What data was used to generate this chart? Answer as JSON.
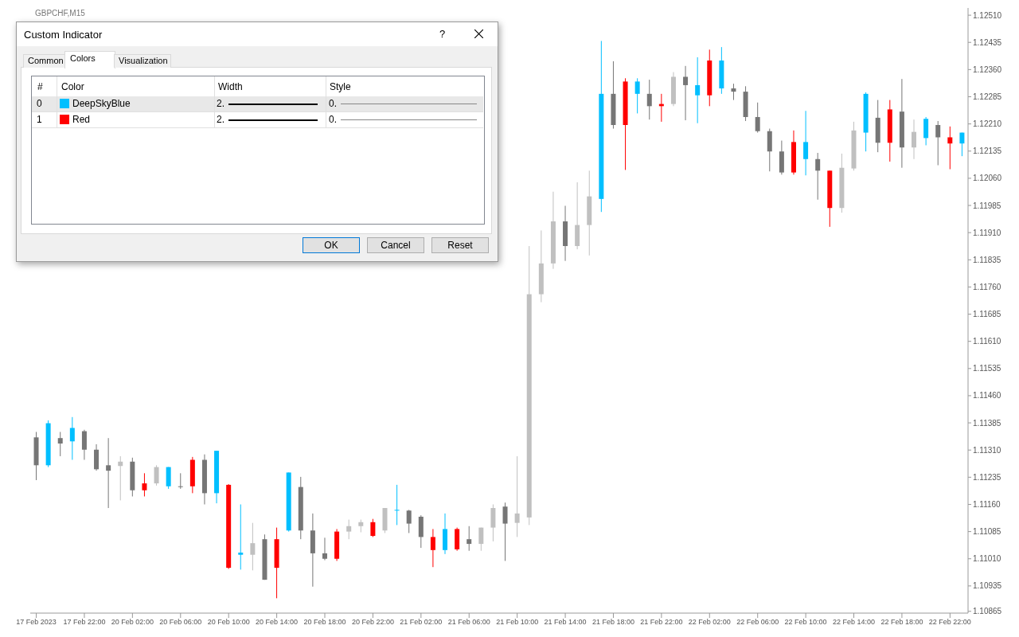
{
  "chart_data": {
    "type": "candlestick",
    "title": "GBPCHF,M15",
    "categories": [
      "17 Feb 2023",
      null,
      null,
      null,
      "17 Feb 22:00",
      null,
      null,
      null,
      "20 Feb 02:00",
      null,
      null,
      null,
      "20 Feb 06:00",
      null,
      null,
      null,
      "20 Feb 10:00",
      null,
      null,
      null,
      "20 Feb 14:00",
      null,
      null,
      null,
      "20 Feb 18:00",
      null,
      null,
      null,
      "20 Feb 22:00",
      null,
      null,
      null,
      "21 Feb 02:00",
      null,
      null,
      null,
      "21 Feb 06:00",
      null,
      null,
      null,
      "21 Feb 10:00",
      null,
      null,
      null,
      "21 Feb 14:00",
      null,
      null,
      null,
      "21 Feb 18:00",
      null,
      null,
      null,
      "21 Feb 22:00",
      null,
      null,
      null,
      "22 Feb 02:00",
      null,
      null,
      null,
      "22 Feb 06:00",
      null,
      null,
      null,
      "22 Feb 10:00",
      null,
      null,
      null,
      "22 Feb 14:00",
      null,
      null,
      null,
      "22 Feb 18:00",
      null,
      null,
      null,
      "22 Feb 22:00",
      null
    ],
    "ohlc": [
      [
        1.11345,
        1.1136,
        1.11227,
        1.11268
      ],
      [
        1.11268,
        1.11392,
        1.11263,
        1.11384
      ],
      [
        1.11343,
        1.1136,
        1.11293,
        1.11328
      ],
      [
        1.11334,
        1.11401,
        1.11283,
        1.11371
      ],
      [
        1.11362,
        1.11366,
        1.11283,
        1.11311
      ],
      [
        1.11311,
        1.11326,
        1.11253,
        1.11257
      ],
      [
        1.11268,
        1.11343,
        1.1115,
        1.11253
      ],
      [
        1.11266,
        1.11293,
        1.11171,
        1.11278
      ],
      [
        1.11278,
        1.11289,
        1.11182,
        1.11199
      ],
      [
        1.11199,
        1.11246,
        1.11182,
        1.11218
      ],
      [
        1.11218,
        1.11268,
        1.11212,
        1.11263
      ],
      [
        1.11263,
        1.11263,
        1.11203,
        1.1121
      ],
      [
        1.1121,
        1.11246,
        1.11203,
        1.11208
      ],
      [
        1.1121,
        1.11291,
        1.11191,
        1.11283
      ],
      [
        1.11283,
        1.11298,
        1.1116,
        1.11191
      ],
      [
        1.11191,
        1.11308,
        1.11163,
        1.11308
      ],
      [
        1.11214,
        1.11216,
        1.10982,
        1.10985
      ],
      [
        1.11027,
        1.1116,
        1.1098,
        1.11021
      ],
      [
        1.11021,
        1.11109,
        1.10978,
        1.11053
      ],
      [
        1.11064,
        1.11077,
        1.10952,
        1.10952
      ],
      [
        1.10985,
        1.11096,
        1.10901,
        1.11064
      ],
      [
        1.11088,
        1.11248,
        1.11085,
        1.11248
      ],
      [
        1.11208,
        1.11236,
        1.11064,
        1.11088
      ],
      [
        1.11088,
        1.11135,
        1.10933,
        1.11025
      ],
      [
        1.11025,
        1.11068,
        1.11006,
        1.1101
      ],
      [
        1.1101,
        1.11092,
        1.11004,
        1.11085
      ],
      [
        1.11085,
        1.11118,
        1.11064,
        1.111
      ],
      [
        1.111,
        1.11118,
        1.11083,
        1.11111
      ],
      [
        1.11111,
        1.1112,
        1.1107,
        1.11073
      ],
      [
        1.11088,
        1.1115,
        1.11081,
        1.1115
      ],
      [
        1.11145,
        1.11214,
        1.11103,
        1.11143
      ],
      [
        1.11143,
        1.11145,
        1.11081,
        1.11107
      ],
      [
        1.11126,
        1.1113,
        1.1104,
        1.1107
      ],
      [
        1.1107,
        1.11092,
        1.10987,
        1.11034
      ],
      [
        1.11034,
        1.11135,
        1.11023,
        1.11092
      ],
      [
        1.11092,
        1.11096,
        1.11032,
        1.11036
      ],
      [
        1.11064,
        1.111,
        1.11032,
        1.11051
      ],
      [
        1.11051,
        1.11096,
        1.11032,
        1.11096
      ],
      [
        1.11096,
        1.1116,
        1.11058,
        1.1115
      ],
      [
        1.11154,
        1.11165,
        1.11004,
        1.11107
      ],
      [
        1.11109,
        1.11293,
        1.1107,
        1.11135
      ],
      [
        1.11124,
        1.11873,
        1.11103,
        1.1174
      ],
      [
        1.1174,
        1.11916,
        1.11718,
        1.11825
      ],
      [
        1.11825,
        1.12023,
        1.1181,
        1.11941
      ],
      [
        1.11941,
        1.11984,
        1.11832,
        1.11873
      ],
      [
        1.11873,
        1.12049,
        1.11864,
        1.11931
      ],
      [
        1.11931,
        1.12081,
        1.11847,
        1.1201
      ],
      [
        1.12003,
        1.12439,
        1.11967,
        1.12293
      ],
      [
        1.12293,
        1.12383,
        1.12197,
        1.12207
      ],
      [
        1.12207,
        1.12336,
        1.12083,
        1.12327
      ],
      [
        1.12327,
        1.12336,
        1.12239,
        1.12293
      ],
      [
        1.12293,
        1.12332,
        1.12222,
        1.12259
      ],
      [
        1.12259,
        1.12293,
        1.12216,
        1.12265
      ],
      [
        1.12265,
        1.12353,
        1.12259,
        1.1234
      ],
      [
        1.1234,
        1.1237,
        1.1222,
        1.12317
      ],
      [
        1.12317,
        1.12394,
        1.12212,
        1.12289
      ],
      [
        1.12289,
        1.12415,
        1.12259,
        1.12385
      ],
      [
        1.12385,
        1.12422,
        1.12293,
        1.12308
      ],
      [
        1.12308,
        1.12321,
        1.12276,
        1.12299
      ],
      [
        1.12299,
        1.12314,
        1.12218,
        1.12229
      ],
      [
        1.12229,
        1.12269,
        1.12186,
        1.1219
      ],
      [
        1.1219,
        1.12197,
        1.12079,
        1.12134
      ],
      [
        1.12134,
        1.12164,
        1.1207,
        1.12076
      ],
      [
        1.12076,
        1.12192,
        1.1207,
        1.1216
      ],
      [
        1.1216,
        1.12246,
        1.12068,
        1.12113
      ],
      [
        1.12113,
        1.1213,
        1.12001,
        1.12081
      ],
      [
        1.12081,
        1.12081,
        1.11926,
        1.11978
      ],
      [
        1.11978,
        1.12128,
        1.11965,
        1.12089
      ],
      [
        1.12087,
        1.12216,
        1.12081,
        1.12192
      ],
      [
        1.12186,
        1.12297,
        1.12134,
        1.12293
      ],
      [
        1.12227,
        1.12276,
        1.12132,
        1.12158
      ],
      [
        1.12158,
        1.12276,
        1.12106,
        1.1225
      ],
      [
        1.12244,
        1.12334,
        1.12089,
        1.12145
      ],
      [
        1.12145,
        1.12222,
        1.12113,
        1.12188
      ],
      [
        1.12171,
        1.12229,
        1.12151,
        1.12224
      ],
      [
        1.12207,
        1.12218,
        1.12096,
        1.12173
      ],
      [
        1.12173,
        1.12203,
        1.12085,
        1.12156
      ],
      [
        1.12156,
        1.12186,
        1.12121,
        1.12186
      ]
    ],
    "colors": [
      "#767676",
      "#00bfff",
      "#767676",
      "#00bfff",
      "#767676",
      "#767676",
      "#767676",
      "#c0c0c0",
      "#767676",
      "#ff0000",
      "#c0c0c0",
      "#00bfff",
      "#767676",
      "#ff0000",
      "#767676",
      "#00bfff",
      "#ff0000",
      "#00bfff",
      "#c0c0c0",
      "#767676",
      "#ff0000",
      "#00bfff",
      "#767676",
      "#767676",
      "#767676",
      "#ff0000",
      "#c0c0c0",
      "#c0c0c0",
      "#ff0000",
      "#c0c0c0",
      "#00bfff",
      "#767676",
      "#767676",
      "#ff0000",
      "#00bfff",
      "#ff0000",
      "#767676",
      "#c0c0c0",
      "#c0c0c0",
      "#767676",
      "#c0c0c0",
      "#c0c0c0",
      "#c0c0c0",
      "#c0c0c0",
      "#767676",
      "#c0c0c0",
      "#c0c0c0",
      "#00bfff",
      "#767676",
      "#ff0000",
      "#00bfff",
      "#767676",
      "#ff0000",
      "#c0c0c0",
      "#767676",
      "#00bfff",
      "#ff0000",
      "#00bfff",
      "#767676",
      "#767676",
      "#767676",
      "#767676",
      "#767676",
      "#ff0000",
      "#00bfff",
      "#767676",
      "#ff0000",
      "#c0c0c0",
      "#c0c0c0",
      "#00bfff",
      "#767676",
      "#ff0000",
      "#767676",
      "#c0c0c0",
      "#00bfff",
      "#767676",
      "#ff0000",
      "#00bfff"
    ],
    "ylim": [
      1.1086,
      1.1253
    ],
    "yticks": [
      1.10865,
      1.10935,
      {
        "value": 1.1101,
        "label": "1.11010"
      },
      1.11085,
      {
        "value": 1.1116,
        "label": "1.11160"
      },
      1.11235,
      {
        "value": 1.1131,
        "label": "1.11310"
      },
      1.11385,
      {
        "value": 1.1146,
        "label": "1.11460"
      },
      1.11535,
      {
        "value": 1.1161,
        "label": "1.11610"
      },
      1.11685,
      {
        "value": 1.1176,
        "label": "1.11760"
      },
      1.11835,
      {
        "value": 1.1191,
        "label": "1.11910"
      },
      1.11985,
      {
        "value": 1.1206,
        "label": "1.12060"
      },
      1.12135,
      {
        "value": 1.1221,
        "label": "1.12210"
      },
      1.12285,
      {
        "value": 1.1236,
        "label": "1.12360"
      },
      1.12435,
      {
        "value": 1.1251,
        "label": "1.12510"
      }
    ],
    "annotations": [
      "Custom Indicator",
      "?",
      "Common",
      "Colors",
      "Visualization",
      "#",
      "Color",
      "Width",
      "Style",
      "0",
      "DeepSkyBlue",
      "2.",
      "0.",
      "1",
      "Red",
      "2.",
      "0.",
      "OK",
      "Cancel",
      "Reset"
    ]
  }
}
